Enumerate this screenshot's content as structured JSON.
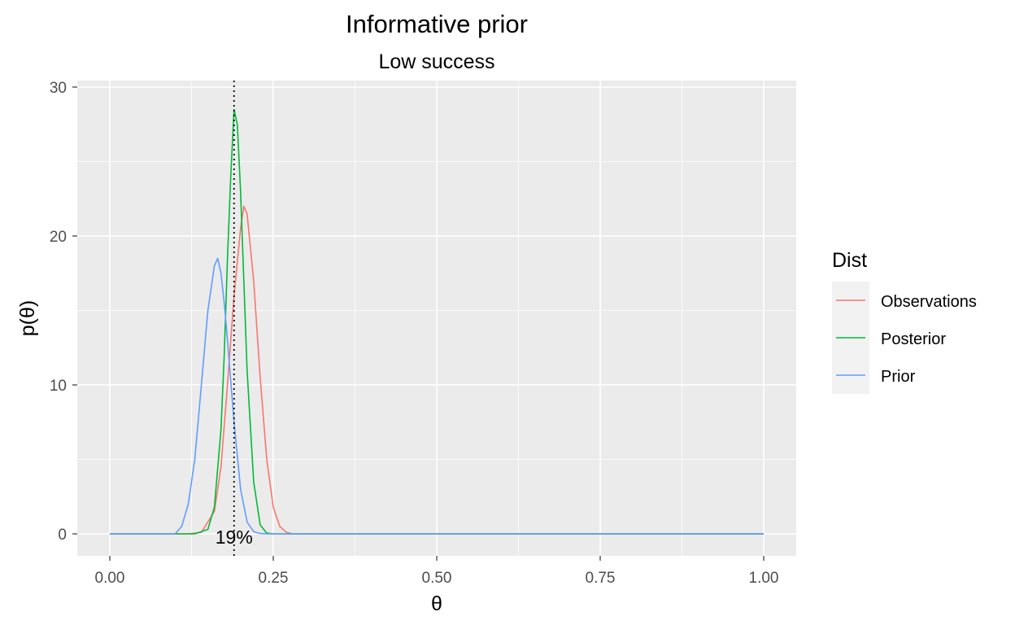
{
  "chart_data": {
    "type": "line",
    "title": "Informative prior",
    "subtitle": "Low success",
    "xlabel": "θ",
    "ylabel": "p(θ)",
    "xlim": [
      0,
      1
    ],
    "ylim": [
      0,
      30
    ],
    "x_ticks": [
      0,
      0.25,
      0.5,
      0.75,
      1
    ],
    "x_tick_labels": [
      "0.00",
      "0.25",
      "0.50",
      "0.75",
      "1.00"
    ],
    "y_ticks": [
      0,
      10,
      20,
      30
    ],
    "y_tick_labels": [
      "0",
      "10",
      "20",
      "30"
    ],
    "grid": true,
    "legend": {
      "title": "Dist",
      "position": "right"
    },
    "series": [
      {
        "name": "Observations",
        "color": "#F8766D",
        "x": [
          0,
          0.12,
          0.14,
          0.16,
          0.17,
          0.18,
          0.19,
          0.2,
          0.205,
          0.21,
          0.22,
          0.23,
          0.24,
          0.25,
          0.26,
          0.27,
          0.28,
          1
        ],
        "y": [
          0,
          0,
          0.1,
          1.5,
          4.5,
          10,
          16,
          20.5,
          22,
          21.5,
          17,
          10.5,
          5,
          1.8,
          0.5,
          0.1,
          0,
          0
        ]
      },
      {
        "name": "Posterior",
        "color": "#00BA38",
        "x": [
          0,
          0.13,
          0.15,
          0.16,
          0.17,
          0.175,
          0.18,
          0.185,
          0.19,
          0.195,
          0.2,
          0.205,
          0.21,
          0.22,
          0.23,
          0.24,
          0.25,
          1
        ],
        "y": [
          0,
          0,
          0.3,
          1.8,
          7,
          12,
          18.5,
          24,
          28.5,
          27.5,
          23,
          17,
          11,
          3.5,
          0.6,
          0.05,
          0,
          0
        ]
      },
      {
        "name": "Prior",
        "color": "#619CFF",
        "x": [
          0,
          0.1,
          0.11,
          0.12,
          0.13,
          0.14,
          0.15,
          0.16,
          0.165,
          0.17,
          0.175,
          0.18,
          0.19,
          0.2,
          0.21,
          0.22,
          0.23,
          0.24,
          1
        ],
        "y": [
          0,
          0,
          0.5,
          2,
          5,
          10,
          15,
          18,
          18.5,
          17.5,
          15.5,
          13,
          7.5,
          3,
          0.8,
          0.15,
          0.02,
          0,
          0
        ]
      }
    ],
    "vline": {
      "x": 0.19,
      "style": "dotted",
      "color": "#000000"
    },
    "annotation": {
      "text": "19%",
      "x": 0.19,
      "y": 0
    }
  }
}
